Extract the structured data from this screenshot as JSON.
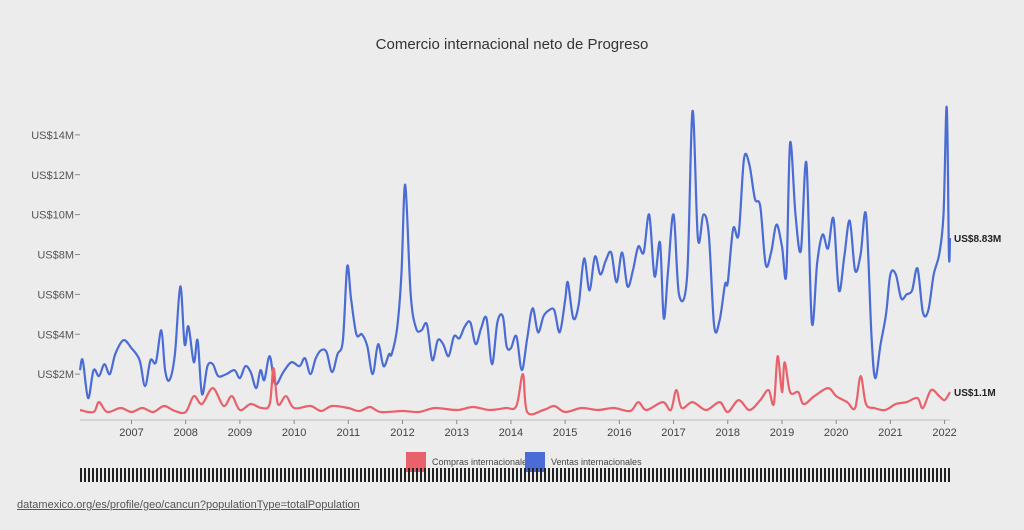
{
  "source_url": "datamexico.org/es/profile/geo/cancun?populationType=totalPopulation",
  "colors": {
    "compras": "#e8616b",
    "ventas": "#4a6cd4",
    "background": "#ececec"
  },
  "chart_data": {
    "type": "line",
    "title": "Comercio internacional neto de Progreso",
    "xlabel": "",
    "ylabel": "",
    "xlim": [
      2006.05,
      2022.1
    ],
    "ylim": [
      -0.3,
      16
    ],
    "y_ticks": [
      2,
      4,
      6,
      8,
      10,
      12,
      14
    ],
    "y_tick_labels": [
      "US$2M",
      "US$4M",
      "US$6M",
      "US$8M",
      "US$10M",
      "US$12M",
      "US$14M"
    ],
    "x_ticks": [
      2007,
      2008,
      2009,
      2010,
      2011,
      2012,
      2013,
      2014,
      2015,
      2016,
      2017,
      2018,
      2019,
      2020,
      2021,
      2022
    ],
    "units": "millones de US$",
    "series": [
      {
        "name": "Compras internacionales",
        "color": "#e8616b",
        "end_label": "US$1.1M",
        "points": [
          [
            2006.05,
            0.2
          ],
          [
            2006.3,
            0.1
          ],
          [
            2006.4,
            0.6
          ],
          [
            2006.55,
            0.1
          ],
          [
            2006.8,
            0.3
          ],
          [
            2007.0,
            0.1
          ],
          [
            2007.2,
            0.3
          ],
          [
            2007.4,
            0.1
          ],
          [
            2007.6,
            0.4
          ],
          [
            2007.8,
            0.15
          ],
          [
            2008.0,
            0.1
          ],
          [
            2008.15,
            0.9
          ],
          [
            2008.3,
            0.5
          ],
          [
            2008.5,
            1.3
          ],
          [
            2008.7,
            0.4
          ],
          [
            2008.85,
            0.9
          ],
          [
            2009.0,
            0.2
          ],
          [
            2009.2,
            0.5
          ],
          [
            2009.4,
            0.3
          ],
          [
            2009.55,
            0.5
          ],
          [
            2009.62,
            2.3
          ],
          [
            2009.7,
            0.5
          ],
          [
            2009.85,
            0.9
          ],
          [
            2010.0,
            0.3
          ],
          [
            2010.3,
            0.4
          ],
          [
            2010.5,
            0.15
          ],
          [
            2010.7,
            0.4
          ],
          [
            2011.0,
            0.3
          ],
          [
            2011.2,
            0.15
          ],
          [
            2011.4,
            0.35
          ],
          [
            2011.6,
            0.1
          ],
          [
            2012.0,
            0.15
          ],
          [
            2012.3,
            0.1
          ],
          [
            2012.6,
            0.3
          ],
          [
            2013.0,
            0.2
          ],
          [
            2013.3,
            0.35
          ],
          [
            2013.6,
            0.2
          ],
          [
            2013.9,
            0.3
          ],
          [
            2014.1,
            0.4
          ],
          [
            2014.22,
            2.0
          ],
          [
            2014.3,
            0.1
          ],
          [
            2014.6,
            0.2
          ],
          [
            2014.8,
            0.4
          ],
          [
            2015.0,
            0.1
          ],
          [
            2015.3,
            0.3
          ],
          [
            2015.6,
            0.2
          ],
          [
            2015.9,
            0.3
          ],
          [
            2016.2,
            0.15
          ],
          [
            2016.35,
            0.6
          ],
          [
            2016.5,
            0.2
          ],
          [
            2016.8,
            0.6
          ],
          [
            2016.95,
            0.2
          ],
          [
            2017.05,
            1.2
          ],
          [
            2017.15,
            0.3
          ],
          [
            2017.35,
            0.6
          ],
          [
            2017.6,
            0.2
          ],
          [
            2017.85,
            0.6
          ],
          [
            2018.0,
            0.1
          ],
          [
            2018.2,
            0.7
          ],
          [
            2018.4,
            0.2
          ],
          [
            2018.6,
            0.7
          ],
          [
            2018.75,
            1.2
          ],
          [
            2018.85,
            0.5
          ],
          [
            2018.92,
            2.9
          ],
          [
            2019.0,
            1.1
          ],
          [
            2019.05,
            2.6
          ],
          [
            2019.15,
            1.1
          ],
          [
            2019.3,
            1.1
          ],
          [
            2019.4,
            0.5
          ],
          [
            2019.6,
            0.9
          ],
          [
            2019.85,
            1.3
          ],
          [
            2020.0,
            0.9
          ],
          [
            2020.2,
            0.6
          ],
          [
            2020.35,
            0.3
          ],
          [
            2020.45,
            1.9
          ],
          [
            2020.55,
            0.5
          ],
          [
            2020.7,
            0.3
          ],
          [
            2020.9,
            0.2
          ],
          [
            2021.1,
            0.5
          ],
          [
            2021.3,
            0.6
          ],
          [
            2021.5,
            0.8
          ],
          [
            2021.6,
            0.3
          ],
          [
            2021.75,
            1.2
          ],
          [
            2021.9,
            0.9
          ],
          [
            2022.0,
            0.7
          ],
          [
            2022.1,
            1.1
          ]
        ]
      },
      {
        "name": "Ventas internacionales",
        "color": "#4a6cd4",
        "end_label": "US$8.83M",
        "points": [
          [
            2006.05,
            2.2
          ],
          [
            2006.1,
            2.7
          ],
          [
            2006.2,
            0.8
          ],
          [
            2006.3,
            2.2
          ],
          [
            2006.4,
            1.9
          ],
          [
            2006.5,
            2.5
          ],
          [
            2006.6,
            2.0
          ],
          [
            2006.7,
            3.0
          ],
          [
            2006.85,
            3.7
          ],
          [
            2007.0,
            3.3
          ],
          [
            2007.15,
            2.7
          ],
          [
            2007.25,
            1.4
          ],
          [
            2007.35,
            2.7
          ],
          [
            2007.45,
            2.6
          ],
          [
            2007.55,
            4.2
          ],
          [
            2007.62,
            2.2
          ],
          [
            2007.7,
            1.7
          ],
          [
            2007.8,
            3.0
          ],
          [
            2007.9,
            6.4
          ],
          [
            2007.98,
            3.5
          ],
          [
            2008.05,
            4.4
          ],
          [
            2008.15,
            2.6
          ],
          [
            2008.22,
            3.7
          ],
          [
            2008.3,
            1.0
          ],
          [
            2008.4,
            2.4
          ],
          [
            2008.5,
            2.5
          ],
          [
            2008.6,
            1.9
          ],
          [
            2008.75,
            2.0
          ],
          [
            2008.9,
            2.2
          ],
          [
            2009.0,
            1.8
          ],
          [
            2009.1,
            2.4
          ],
          [
            2009.2,
            2.1
          ],
          [
            2009.3,
            1.3
          ],
          [
            2009.38,
            2.2
          ],
          [
            2009.45,
            1.7
          ],
          [
            2009.55,
            2.9
          ],
          [
            2009.65,
            1.5
          ],
          [
            2009.8,
            2.1
          ],
          [
            2009.95,
            2.6
          ],
          [
            2010.1,
            2.4
          ],
          [
            2010.2,
            2.8
          ],
          [
            2010.3,
            2.0
          ],
          [
            2010.4,
            2.8
          ],
          [
            2010.5,
            3.2
          ],
          [
            2010.6,
            3.1
          ],
          [
            2010.7,
            2.1
          ],
          [
            2010.8,
            3.0
          ],
          [
            2010.9,
            3.7
          ],
          [
            2010.98,
            7.4
          ],
          [
            2011.05,
            5.8
          ],
          [
            2011.15,
            4.0
          ],
          [
            2011.25,
            4.0
          ],
          [
            2011.35,
            3.4
          ],
          [
            2011.45,
            2.0
          ],
          [
            2011.55,
            3.5
          ],
          [
            2011.65,
            2.4
          ],
          [
            2011.75,
            3.0
          ],
          [
            2011.8,
            3.0
          ],
          [
            2011.9,
            4.3
          ],
          [
            2011.98,
            7.0
          ],
          [
            2012.05,
            11.5
          ],
          [
            2012.15,
            6.0
          ],
          [
            2012.25,
            4.3
          ],
          [
            2012.35,
            4.2
          ],
          [
            2012.45,
            4.5
          ],
          [
            2012.55,
            2.7
          ],
          [
            2012.65,
            3.7
          ],
          [
            2012.75,
            3.5
          ],
          [
            2012.85,
            2.9
          ],
          [
            2012.95,
            3.9
          ],
          [
            2013.05,
            3.8
          ],
          [
            2013.15,
            4.4
          ],
          [
            2013.25,
            4.6
          ],
          [
            2013.35,
            3.5
          ],
          [
            2013.45,
            4.3
          ],
          [
            2013.55,
            4.8
          ],
          [
            2013.65,
            2.5
          ],
          [
            2013.75,
            4.6
          ],
          [
            2013.85,
            4.9
          ],
          [
            2013.92,
            3.4
          ],
          [
            2014.0,
            3.3
          ],
          [
            2014.1,
            3.9
          ],
          [
            2014.2,
            2.2
          ],
          [
            2014.3,
            3.8
          ],
          [
            2014.4,
            5.3
          ],
          [
            2014.5,
            4.1
          ],
          [
            2014.6,
            4.9
          ],
          [
            2014.7,
            5.2
          ],
          [
            2014.8,
            5.2
          ],
          [
            2014.9,
            4.1
          ],
          [
            2015.0,
            5.7
          ],
          [
            2015.05,
            6.6
          ],
          [
            2015.15,
            4.8
          ],
          [
            2015.25,
            5.5
          ],
          [
            2015.35,
            7.8
          ],
          [
            2015.45,
            6.2
          ],
          [
            2015.55,
            7.9
          ],
          [
            2015.65,
            7.0
          ],
          [
            2015.75,
            7.7
          ],
          [
            2015.85,
            8.1
          ],
          [
            2015.95,
            6.6
          ],
          [
            2016.05,
            8.1
          ],
          [
            2016.15,
            6.4
          ],
          [
            2016.25,
            7.2
          ],
          [
            2016.35,
            8.4
          ],
          [
            2016.45,
            8.1
          ],
          [
            2016.55,
            10.0
          ],
          [
            2016.65,
            6.9
          ],
          [
            2016.75,
            8.6
          ],
          [
            2016.82,
            4.8
          ],
          [
            2016.9,
            7.2
          ],
          [
            2017.0,
            10.0
          ],
          [
            2017.1,
            6.0
          ],
          [
            2017.25,
            6.9
          ],
          [
            2017.35,
            15.2
          ],
          [
            2017.45,
            8.8
          ],
          [
            2017.55,
            10.0
          ],
          [
            2017.65,
            9.0
          ],
          [
            2017.75,
            4.4
          ],
          [
            2017.85,
            4.7
          ],
          [
            2017.95,
            6.5
          ],
          [
            2018.0,
            6.6
          ],
          [
            2018.1,
            9.3
          ],
          [
            2018.2,
            9.0
          ],
          [
            2018.3,
            12.8
          ],
          [
            2018.4,
            12.5
          ],
          [
            2018.5,
            10.8
          ],
          [
            2018.6,
            10.4
          ],
          [
            2018.7,
            7.5
          ],
          [
            2018.8,
            8.1
          ],
          [
            2018.9,
            9.5
          ],
          [
            2019.0,
            8.4
          ],
          [
            2019.08,
            7.0
          ],
          [
            2019.15,
            13.6
          ],
          [
            2019.25,
            10.0
          ],
          [
            2019.35,
            8.2
          ],
          [
            2019.45,
            12.6
          ],
          [
            2019.55,
            4.6
          ],
          [
            2019.65,
            7.6
          ],
          [
            2019.75,
            9.0
          ],
          [
            2019.85,
            8.3
          ],
          [
            2019.95,
            9.8
          ],
          [
            2020.05,
            6.2
          ],
          [
            2020.15,
            7.9
          ],
          [
            2020.25,
            9.7
          ],
          [
            2020.35,
            7.2
          ],
          [
            2020.45,
            8.0
          ],
          [
            2020.55,
            10.0
          ],
          [
            2020.65,
            4.0
          ],
          [
            2020.72,
            1.8
          ],
          [
            2020.82,
            3.5
          ],
          [
            2020.92,
            5.0
          ],
          [
            2021.0,
            7.0
          ],
          [
            2021.1,
            7.0
          ],
          [
            2021.2,
            5.8
          ],
          [
            2021.3,
            6.0
          ],
          [
            2021.4,
            6.2
          ],
          [
            2021.5,
            7.3
          ],
          [
            2021.6,
            5.1
          ],
          [
            2021.7,
            5.2
          ],
          [
            2021.8,
            7.0
          ],
          [
            2021.9,
            8.0
          ],
          [
            2021.98,
            10.0
          ],
          [
            2022.04,
            15.4
          ],
          [
            2022.08,
            8.0
          ],
          [
            2022.1,
            8.83
          ]
        ]
      }
    ]
  }
}
